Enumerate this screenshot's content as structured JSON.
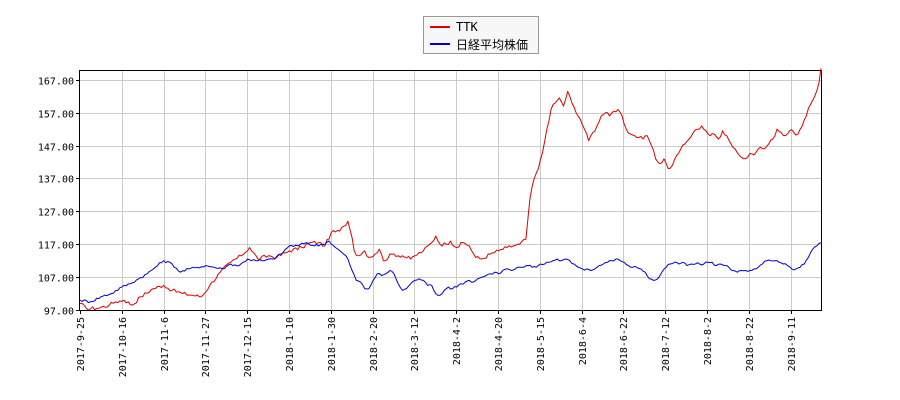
{
  "chart_data": {
    "type": "line",
    "ylim": [
      97.0,
      170.0
    ],
    "y_ticks": [
      "97.00",
      "107.00",
      "117.00",
      "127.00",
      "137.00",
      "147.00",
      "157.00",
      "167.00"
    ],
    "x_ticks": [
      "2017-9-25",
      "2017-10-16",
      "2017-11-6",
      "2017-11-27",
      "2017-12-15",
      "2018-1-10",
      "2018-1-30",
      "2018-2-20",
      "2018-3-12",
      "2018-4-2",
      "2018-4-20",
      "2018-5-15",
      "2018-6-4",
      "2018-6-22",
      "2018-7-12",
      "2018-8-2",
      "2018-8-22",
      "2018-9-11"
    ],
    "grid": true,
    "legend_position": "top-center",
    "series": [
      {
        "name": "TTK",
        "color": "#dd0000",
        "keypoints": [
          [
            0,
            99.0
          ],
          [
            3,
            97.5
          ],
          [
            8,
            97.5
          ],
          [
            14,
            98.5
          ],
          [
            17,
            99.5
          ],
          [
            21,
            100.0
          ],
          [
            25,
            98.5
          ],
          [
            29,
            101.0
          ],
          [
            35,
            103.5
          ],
          [
            40,
            104.5
          ],
          [
            44,
            103.0
          ],
          [
            49,
            102.0
          ],
          [
            54,
            101.5
          ],
          [
            58,
            101.0
          ],
          [
            62,
            104.5
          ],
          [
            67,
            108.5
          ],
          [
            72,
            111.5
          ],
          [
            77,
            113.5
          ],
          [
            81,
            116.0
          ],
          [
            85,
            112.5
          ],
          [
            90,
            113.5
          ],
          [
            94,
            113.0
          ],
          [
            100,
            115.0
          ],
          [
            106,
            116.0
          ],
          [
            110,
            117.5
          ],
          [
            114,
            117.5
          ],
          [
            117,
            116.5
          ],
          [
            120,
            120.5
          ],
          [
            124,
            121.0
          ],
          [
            126,
            122.5
          ],
          [
            128,
            124.0
          ],
          [
            130,
            119.0
          ],
          [
            131,
            115.0
          ],
          [
            133,
            113.5
          ],
          [
            136,
            115.0
          ],
          [
            138,
            113.0
          ],
          [
            141,
            114.0
          ],
          [
            143,
            115.5
          ],
          [
            145,
            112.0
          ],
          [
            149,
            114.0
          ],
          [
            154,
            113.5
          ],
          [
            158,
            112.5
          ],
          [
            160,
            113.5
          ],
          [
            164,
            115.0
          ],
          [
            168,
            117.5
          ],
          [
            170,
            119.5
          ],
          [
            172,
            117.0
          ],
          [
            175,
            117.0
          ],
          [
            177,
            118.0
          ],
          [
            180,
            116.0
          ],
          [
            183,
            117.5
          ],
          [
            186,
            116.5
          ],
          [
            189,
            113.0
          ],
          [
            192,
            112.5
          ],
          [
            196,
            114.0
          ],
          [
            200,
            115.0
          ],
          [
            204,
            116.0
          ],
          [
            207,
            116.5
          ],
          [
            210,
            117.0
          ],
          [
            213,
            118.5
          ],
          [
            215,
            131.0
          ],
          [
            217,
            137.0
          ],
          [
            219,
            140.0
          ],
          [
            221,
            145.0
          ],
          [
            223,
            152.0
          ],
          [
            225,
            158.0
          ],
          [
            227,
            160.0
          ],
          [
            229,
            161.5
          ],
          [
            231,
            159.0
          ],
          [
            233,
            163.5
          ],
          [
            235,
            160.0
          ],
          [
            237,
            157.0
          ],
          [
            239,
            155.0
          ],
          [
            241,
            152.0
          ],
          [
            243,
            148.5
          ],
          [
            245,
            151.0
          ],
          [
            247,
            153.0
          ],
          [
            249,
            156.0
          ],
          [
            251,
            157.0
          ],
          [
            253,
            156.0
          ],
          [
            255,
            157.5
          ],
          [
            257,
            158.0
          ],
          [
            259,
            156.0
          ],
          [
            261,
            152.0
          ],
          [
            263,
            150.5
          ],
          [
            265,
            150.0
          ],
          [
            267,
            149.5
          ],
          [
            269,
            149.0
          ],
          [
            271,
            150.0
          ],
          [
            273,
            147.0
          ],
          [
            275,
            143.0
          ],
          [
            277,
            141.5
          ],
          [
            279,
            143.0
          ],
          [
            281,
            140.0
          ],
          [
            283,
            141.0
          ],
          [
            285,
            144.0
          ],
          [
            287,
            146.0
          ],
          [
            289,
            147.5
          ],
          [
            291,
            149.0
          ],
          [
            293,
            151.0
          ],
          [
            295,
            152.0
          ],
          [
            297,
            153.0
          ],
          [
            299,
            151.5
          ],
          [
            301,
            150.0
          ],
          [
            303,
            150.5
          ],
          [
            305,
            149.0
          ],
          [
            307,
            151.5
          ],
          [
            309,
            150.0
          ],
          [
            311,
            147.5
          ],
          [
            313,
            146.0
          ],
          [
            315,
            144.0
          ],
          [
            317,
            143.0
          ],
          [
            319,
            143.5
          ],
          [
            321,
            144.5
          ],
          [
            323,
            145.0
          ],
          [
            325,
            146.5
          ],
          [
            327,
            146.0
          ],
          [
            329,
            147.5
          ],
          [
            331,
            149.0
          ],
          [
            333,
            152.0
          ],
          [
            335,
            151.0
          ],
          [
            337,
            150.0
          ],
          [
            339,
            151.5
          ],
          [
            341,
            151.0
          ],
          [
            343,
            150.5
          ],
          [
            345,
            153.0
          ],
          [
            347,
            156.0
          ],
          [
            349,
            159.5
          ],
          [
            351,
            162.0
          ],
          [
            353,
            166.0
          ],
          [
            354,
            170.5
          ]
        ]
      },
      {
        "name": "日経平均株価",
        "color": "#0000cc",
        "keypoints": [
          [
            0,
            100.0
          ],
          [
            5,
            99.5
          ],
          [
            10,
            101.0
          ],
          [
            15,
            102.0
          ],
          [
            20,
            104.0
          ],
          [
            24,
            105.0
          ],
          [
            28,
            106.5
          ],
          [
            32,
            108.0
          ],
          [
            36,
            110.0
          ],
          [
            40,
            112.0
          ],
          [
            44,
            111.0
          ],
          [
            48,
            108.5
          ],
          [
            52,
            109.5
          ],
          [
            56,
            110.0
          ],
          [
            60,
            110.5
          ],
          [
            64,
            110.0
          ],
          [
            68,
            109.5
          ],
          [
            72,
            111.0
          ],
          [
            76,
            110.5
          ],
          [
            80,
            112.5
          ],
          [
            84,
            112.0
          ],
          [
            88,
            112.0
          ],
          [
            92,
            112.5
          ],
          [
            96,
            114.0
          ],
          [
            100,
            116.5
          ],
          [
            104,
            116.5
          ],
          [
            108,
            117.5
          ],
          [
            112,
            116.5
          ],
          [
            116,
            117.0
          ],
          [
            119,
            118.0
          ],
          [
            122,
            116.0
          ],
          [
            126,
            114.0
          ],
          [
            128,
            112.5
          ],
          [
            130,
            109.0
          ],
          [
            132,
            106.0
          ],
          [
            134,
            105.5
          ],
          [
            136,
            103.5
          ],
          [
            138,
            103.5
          ],
          [
            140,
            106.0
          ],
          [
            142,
            108.0
          ],
          [
            144,
            107.5
          ],
          [
            146,
            108.0
          ],
          [
            148,
            109.0
          ],
          [
            150,
            108.0
          ],
          [
            152,
            105.0
          ],
          [
            154,
            103.0
          ],
          [
            156,
            103.5
          ],
          [
            158,
            105.0
          ],
          [
            160,
            106.0
          ],
          [
            162,
            106.5
          ],
          [
            164,
            106.0
          ],
          [
            166,
            104.5
          ],
          [
            168,
            104.5
          ],
          [
            170,
            102.0
          ],
          [
            172,
            101.5
          ],
          [
            174,
            103.0
          ],
          [
            176,
            104.0
          ],
          [
            178,
            103.5
          ],
          [
            180,
            104.0
          ],
          [
            182,
            105.0
          ],
          [
            184,
            105.5
          ],
          [
            186,
            106.0
          ],
          [
            188,
            105.5
          ],
          [
            190,
            106.5
          ],
          [
            192,
            107.0
          ],
          [
            194,
            107.5
          ],
          [
            196,
            108.0
          ],
          [
            198,
            108.5
          ],
          [
            200,
            108.0
          ],
          [
            202,
            109.0
          ],
          [
            204,
            109.5
          ],
          [
            206,
            109.0
          ],
          [
            208,
            109.5
          ],
          [
            210,
            110.0
          ],
          [
            212,
            110.0
          ],
          [
            214,
            110.5
          ],
          [
            216,
            110.0
          ],
          [
            218,
            110.0
          ],
          [
            220,
            111.0
          ],
          [
            222,
            111.0
          ],
          [
            224,
            111.5
          ],
          [
            226,
            112.0
          ],
          [
            228,
            112.5
          ],
          [
            230,
            112.0
          ],
          [
            232,
            112.5
          ],
          [
            234,
            112.0
          ],
          [
            236,
            111.0
          ],
          [
            238,
            110.0
          ],
          [
            240,
            109.5
          ],
          [
            242,
            109.5
          ],
          [
            244,
            109.0
          ],
          [
            246,
            109.5
          ],
          [
            248,
            110.5
          ],
          [
            250,
            111.0
          ],
          [
            252,
            111.5
          ],
          [
            254,
            112.0
          ],
          [
            256,
            112.5
          ],
          [
            258,
            112.0
          ],
          [
            260,
            111.5
          ],
          [
            262,
            110.5
          ],
          [
            264,
            110.0
          ],
          [
            266,
            110.0
          ],
          [
            268,
            109.5
          ],
          [
            270,
            108.5
          ],
          [
            272,
            106.5
          ],
          [
            274,
            106.0
          ],
          [
            276,
            106.5
          ],
          [
            278,
            108.5
          ],
          [
            280,
            110.0
          ],
          [
            282,
            111.0
          ],
          [
            284,
            111.5
          ],
          [
            286,
            111.0
          ],
          [
            288,
            111.5
          ],
          [
            290,
            110.5
          ],
          [
            292,
            111.0
          ],
          [
            294,
            111.0
          ],
          [
            296,
            111.0
          ],
          [
            298,
            111.0
          ],
          [
            300,
            111.5
          ],
          [
            302,
            111.5
          ],
          [
            304,
            110.5
          ],
          [
            306,
            111.0
          ],
          [
            308,
            110.5
          ],
          [
            310,
            110.0
          ],
          [
            312,
            109.0
          ],
          [
            314,
            108.5
          ],
          [
            316,
            109.0
          ],
          [
            318,
            109.0
          ],
          [
            320,
            109.0
          ],
          [
            322,
            109.5
          ],
          [
            324,
            110.0
          ],
          [
            326,
            111.0
          ],
          [
            328,
            112.0
          ],
          [
            330,
            112.0
          ],
          [
            332,
            112.0
          ],
          [
            334,
            111.5
          ],
          [
            336,
            111.0
          ],
          [
            338,
            110.5
          ],
          [
            340,
            109.5
          ],
          [
            342,
            109.5
          ],
          [
            344,
            110.0
          ],
          [
            346,
            111.0
          ],
          [
            348,
            113.0
          ],
          [
            350,
            115.5
          ],
          [
            352,
            116.5
          ],
          [
            354,
            117.5
          ]
        ]
      }
    ]
  }
}
